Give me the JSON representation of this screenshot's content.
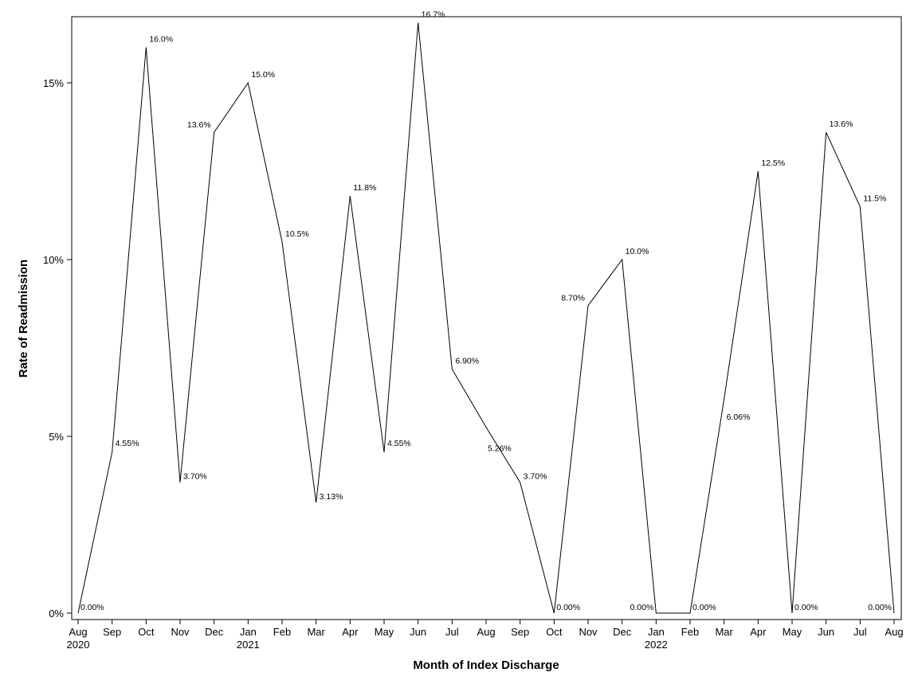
{
  "chart_data": {
    "type": "line",
    "xlabel": "Month of Index Discharge",
    "ylabel": "Rate of Readmission",
    "ylim": [
      0,
      16.7
    ],
    "yticks": [
      0,
      5,
      10,
      15
    ],
    "ytick_labels": [
      "0%",
      "5%",
      "10%",
      "15%"
    ],
    "grid": false,
    "x": [
      "Aug 2020",
      "Sep 2020",
      "Oct 2020",
      "Nov 2020",
      "Dec 2020",
      "Jan 2021",
      "Feb 2021",
      "Mar 2021",
      "Apr 2021",
      "May 2021",
      "Jun 2021",
      "Jul 2021",
      "Aug 2021",
      "Sep 2021",
      "Oct 2021",
      "Nov 2021",
      "Dec 2021",
      "Jan 2022",
      "Feb 2022",
      "Mar 2022",
      "Apr 2022",
      "May 2022",
      "Jun 2022",
      "Jul 2022",
      "Aug 2022"
    ],
    "tick_labels": [
      "Aug",
      "Sep",
      "Oct",
      "Nov",
      "Dec",
      "Jan",
      "Feb",
      "Mar",
      "Apr",
      "May",
      "Jun",
      "Jul",
      "Aug",
      "Sep",
      "Oct",
      "Nov",
      "Dec",
      "Jan",
      "Feb",
      "Mar",
      "Apr",
      "May",
      "Jun",
      "Jul",
      "Aug"
    ],
    "year_labels": [
      {
        "at": "Aug 2020",
        "text": "2020"
      },
      {
        "at": "Jan 2021",
        "text": "2021"
      },
      {
        "at": "Jan 2022",
        "text": "2022"
      }
    ],
    "series": [
      {
        "values": [
          0.0,
          4.55,
          16.0,
          3.7,
          13.6,
          15.0,
          10.5,
          3.13,
          11.8,
          4.55,
          16.7,
          6.9,
          5.26,
          3.7,
          0.0,
          8.7,
          10.0,
          0.0,
          0.0,
          6.06,
          12.5,
          0.0,
          13.6,
          11.5,
          0.0
        ],
        "labels": [
          "0.00%",
          "4.55%",
          "16.0%",
          "3.70%",
          "13.6%",
          "15.0%",
          "10.5%",
          "3.13%",
          "11.8%",
          "4.55%",
          "16.7%",
          "6.90%",
          "5.26%",
          "3.70%",
          "0.00%",
          "8.70%",
          "10.0%",
          "0.00%",
          "0.00%",
          "6.06%",
          "12.5%",
          "0.00%",
          "13.6%",
          "11.5%",
          "0.00%"
        ],
        "color": "#000000"
      }
    ]
  }
}
